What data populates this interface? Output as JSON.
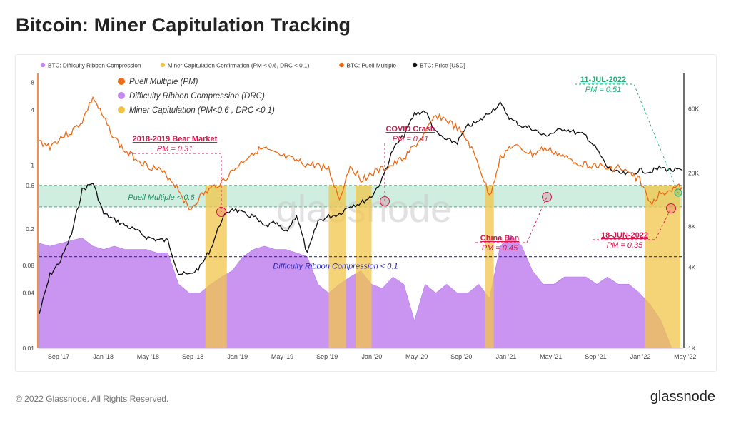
{
  "title": "Bitcoin: Miner Capitulation Tracking",
  "footer": {
    "copyright": "© 2022 Glassnode. All Rights Reserved.",
    "brand": "glassnode"
  },
  "watermark": "glassnode",
  "colors": {
    "puell": "#ec6a15",
    "price": "#111111",
    "drc": "#c58af0",
    "capitulation": "#f0c64a",
    "puell_band": "#bfe8d4",
    "drc_line": "#2b2bb8",
    "annot_red": "#d6184e",
    "annot_green": "#1fb07a"
  },
  "chart_data": {
    "type": "line",
    "legend_top": [
      {
        "label": "BTC: Difficulty Ribbon Compression",
        "color": "#c58af0"
      },
      {
        "label": "Miner Capitulation Confirmation (PM < 0.6, DRC < 0.1)",
        "color": "#f0c64a"
      },
      {
        "label": "BTC: Puell Multiple",
        "color": "#ec6a15"
      },
      {
        "label": "BTC: Price [USD]",
        "color": "#111111"
      }
    ],
    "legend_inner": [
      {
        "label": "Puell Multiple (PM)",
        "color": "#ec6a15"
      },
      {
        "label": "Difficulty Ribbon Compression (DRC)",
        "color": "#c58af0"
      },
      {
        "label": "Miner Capitulation (PM<0.6 , DRC <0.1)",
        "color": "#f0c64a"
      }
    ],
    "x_ticks": [
      "Sep '17",
      "Jan '18",
      "May '18",
      "Sep '18",
      "Jan '19",
      "May '19",
      "Sep '19",
      "Jan '20",
      "May '20",
      "Sep '20",
      "Jan '21",
      "May '21",
      "Sep '21",
      "Jan '22",
      "May '22"
    ],
    "y_left_ticks": [
      "8",
      "4",
      "1",
      "0.6",
      "0.2",
      "0.08",
      "0.04",
      "0.01"
    ],
    "y_right_ticks": [
      "60K",
      "20K",
      "8K",
      "4K",
      "1K"
    ],
    "y_left_scale": "log",
    "y_right_scale": "log",
    "puell_band": {
      "from": 0.35,
      "to": 0.6,
      "label": "Puell Multiple < 0.6"
    },
    "drc_threshold": {
      "value": 0.1,
      "label": "Difficulty Ribbon Compression < 0.1"
    },
    "annotations": [
      {
        "title": "2018-2019 Bear Market",
        "value": "PM = 0.31"
      },
      {
        "title": "COVID Crash",
        "value": "PM = 0.41"
      },
      {
        "title": "China Ban",
        "value": "PM = 0.45"
      },
      {
        "title": "18-JUN-2022",
        "value": "PM = 0.35"
      },
      {
        "title": "11-JUL-2022",
        "value": "PM = 0.51"
      }
    ],
    "series": [
      {
        "name": "BTC: Puell Multiple",
        "x": [
          0,
          1,
          2,
          3,
          4,
          5,
          6,
          7,
          8,
          9,
          10,
          11,
          12,
          13,
          14,
          15,
          16,
          17,
          18,
          19,
          20,
          21,
          22,
          23,
          24,
          25,
          26,
          27,
          28,
          29,
          30,
          31,
          32,
          33,
          34,
          35,
          36,
          37,
          38,
          39,
          40,
          41,
          42,
          43,
          44,
          45,
          46,
          47,
          48,
          49,
          50,
          51,
          52,
          53,
          54,
          55,
          56,
          57,
          58,
          59,
          60
        ],
        "values": [
          1.8,
          1.6,
          2.0,
          2.3,
          3.0,
          5.5,
          3.2,
          2.0,
          1.4,
          1.2,
          1.0,
          0.9,
          0.75,
          0.55,
          0.32,
          0.45,
          0.55,
          0.65,
          0.85,
          1.1,
          1.4,
          1.5,
          1.3,
          1.2,
          1.1,
          1.0,
          1.0,
          0.9,
          0.42,
          1.0,
          0.7,
          0.8,
          0.9,
          1.0,
          1.2,
          1.6,
          2.2,
          3.5,
          3.1,
          2.5,
          1.8,
          1.0,
          0.45,
          1.2,
          1.6,
          1.5,
          1.3,
          1.5,
          1.4,
          1.2,
          1.1,
          1.0,
          1.0,
          0.9,
          0.95,
          0.8,
          0.7,
          0.38,
          0.5,
          0.55,
          0.58
        ]
      },
      {
        "name": "BTC: Price [USD]",
        "x": [
          0,
          1,
          2,
          3,
          4,
          5,
          6,
          7,
          8,
          9,
          10,
          11,
          12,
          13,
          14,
          15,
          16,
          17,
          18,
          19,
          20,
          21,
          22,
          23,
          24,
          25,
          26,
          27,
          28,
          29,
          30,
          31,
          32,
          33,
          34,
          35,
          36,
          37,
          38,
          39,
          40,
          41,
          42,
          43,
          44,
          45,
          46,
          47,
          48,
          49,
          50,
          51,
          52,
          53,
          54,
          55,
          56,
          57,
          58,
          59,
          60
        ],
        "values": [
          1800,
          3500,
          4500,
          7000,
          15000,
          17000,
          10000,
          9000,
          8200,
          7500,
          6700,
          6400,
          6300,
          3600,
          3500,
          4000,
          5500,
          9000,
          11000,
          10000,
          9500,
          8000,
          8500,
          7200,
          9800,
          5000,
          8800,
          9500,
          10000,
          11500,
          12000,
          13500,
          18000,
          30000,
          38000,
          55000,
          58000,
          40000,
          35000,
          34000,
          45000,
          48000,
          57000,
          65000,
          50000,
          45000,
          43000,
          38000,
          40000,
          43000,
          40000,
          38000,
          30000,
          22000,
          20000,
          19500,
          21000,
          20500,
          22000,
          21000,
          21000
        ]
      },
      {
        "name": "BTC: Difficulty Ribbon Compression",
        "x": [
          0,
          1,
          2,
          3,
          4,
          5,
          6,
          7,
          8,
          9,
          10,
          11,
          12,
          13,
          14,
          15,
          16,
          17,
          18,
          19,
          20,
          21,
          22,
          23,
          24,
          25,
          26,
          27,
          28,
          29,
          30,
          31,
          32,
          33,
          34,
          35,
          36,
          37,
          38,
          39,
          40,
          41,
          42,
          43,
          44,
          45,
          46,
          47,
          48,
          49,
          50,
          51,
          52,
          53,
          54,
          55,
          56,
          57,
          58,
          59,
          60
        ],
        "values": [
          0.14,
          0.13,
          0.14,
          0.15,
          0.16,
          0.13,
          0.12,
          0.13,
          0.12,
          0.12,
          0.12,
          0.11,
          0.11,
          0.05,
          0.04,
          0.04,
          0.05,
          0.06,
          0.07,
          0.1,
          0.12,
          0.13,
          0.12,
          0.12,
          0.11,
          0.1,
          0.05,
          0.04,
          0.05,
          0.06,
          0.07,
          0.05,
          0.045,
          0.06,
          0.05,
          0.02,
          0.05,
          0.04,
          0.05,
          0.04,
          0.04,
          0.05,
          0.035,
          0.13,
          0.17,
          0.13,
          0.07,
          0.05,
          0.05,
          0.06,
          0.06,
          0.06,
          0.05,
          0.06,
          0.05,
          0.05,
          0.04,
          0.03,
          0.02,
          0.01,
          0.01
        ]
      }
    ],
    "capitulation_periods": [
      [
        15.5,
        17.5
      ],
      [
        27.0,
        28.6
      ],
      [
        29.5,
        31.0
      ],
      [
        41.6,
        42.4
      ],
      [
        56.5,
        59.8
      ]
    ]
  }
}
